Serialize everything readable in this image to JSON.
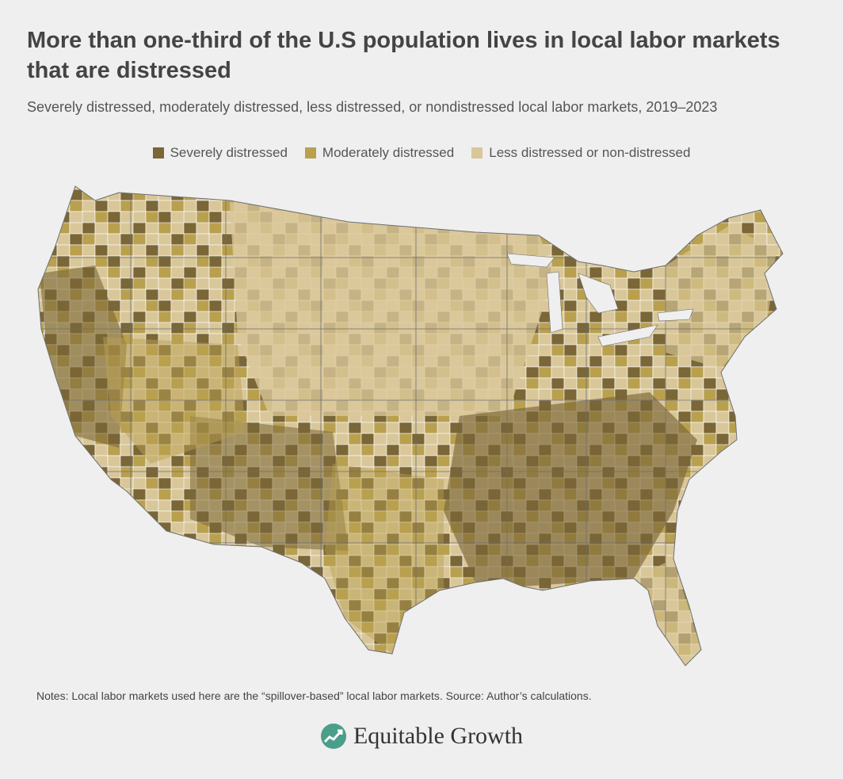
{
  "header": {
    "title": "More than one-third of the U.S population lives in local labor markets that are distressed",
    "subtitle": "Severely distressed, moderately distressed, less distressed, or nondistressed local labor markets, 2019–2023"
  },
  "legend": [
    {
      "label": "Severely distressed",
      "color": "#7a6636"
    },
    {
      "label": "Moderately distressed",
      "color": "#b9a04f"
    },
    {
      "label": "Less distressed or non-distressed",
      "color": "#d9c79a"
    }
  ],
  "map": {
    "type": "choropleth",
    "region": "contiguous-united-states",
    "colors": {
      "severe": "#7a6636",
      "moderate": "#b9a04f",
      "less": "#d9c79a",
      "border": "#ffffff",
      "state_border": "#6e6e6e"
    }
  },
  "footer": {
    "notes": "Notes: Local labor markets used here are the “spillover-based” local labor markets. Source: Author’s calculations.",
    "brand": "Equitable Growth",
    "logo_icon": "growth-chart-logo-icon",
    "logo_color": "#4a9e8a"
  }
}
